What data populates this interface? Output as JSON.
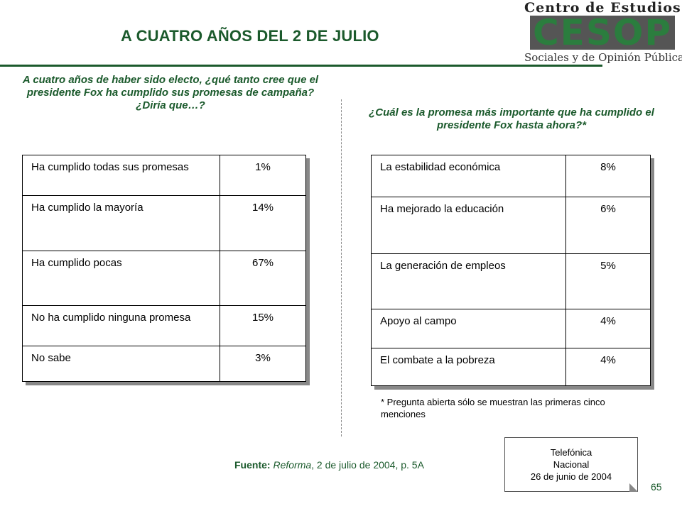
{
  "header": {
    "title": "A CUATRO AÑOS DEL 2 DE JULIO",
    "logo": {
      "top_text": "Centro de Estudios",
      "wordmark": "CESOP",
      "bottom_text": "Sociales y de Opinión Pública"
    }
  },
  "left_panel": {
    "question": "A cuatro años de haber sido electo, ¿qué tanto cree que el presidente Fox ha cumplido sus promesas de campaña? ¿Diría que…?",
    "rows": [
      {
        "label": "Ha cumplido todas sus promesas",
        "value": "1%"
      },
      {
        "label": "Ha cumplido la mayoría",
        "value": "14%"
      },
      {
        "label": "Ha cumplido pocas",
        "value": "67%"
      },
      {
        "label": "No ha cumplido ninguna promesa",
        "value": "15%"
      },
      {
        "label": "No sabe",
        "value": "3%"
      }
    ]
  },
  "right_panel": {
    "question": "¿Cuál es la promesa más importante que ha cumplido el presidente Fox hasta ahora?*",
    "rows": [
      {
        "label": "La estabilidad económica",
        "value": "8%"
      },
      {
        "label": "Ha mejorado la educación",
        "value": "6%"
      },
      {
        "label": "La generación de empleos",
        "value": "5%"
      },
      {
        "label": "Apoyo al campo",
        "value": "4%"
      },
      {
        "label": "El combate a la pobreza",
        "value": "4%"
      }
    ],
    "note": "* Pregunta abierta sólo se muestran las primeras cinco menciones"
  },
  "footer": {
    "source_label": "Fuente:",
    "source_publication": "Reforma",
    "source_rest": ", 2 de julio de 2004, p. 5A",
    "survey_box": {
      "line1": "Telefónica",
      "line2": "Nacional",
      "line3": "26 de junio de 2004"
    },
    "page_number": "65"
  },
  "colors": {
    "accent_green": "#1b5a2c",
    "logo_green": "#2b7d3e",
    "shadow_gray": "#888888"
  }
}
